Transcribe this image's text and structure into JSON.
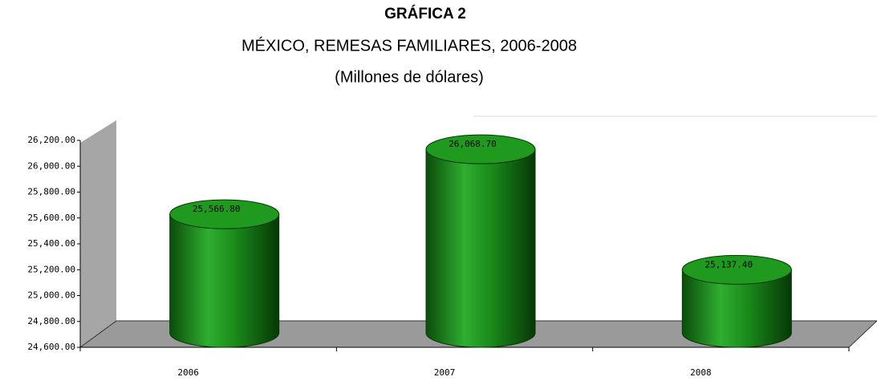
{
  "chart_data": {
    "type": "bar",
    "title": "GRÁFICA 2",
    "subtitle": "MÉXICO, REMESAS FAMILIARES, 2006-2008",
    "unit": "(Millones de dólares)",
    "categories": [
      "2006",
      "2007",
      "2008"
    ],
    "values": [
      25566.8,
      26068.7,
      25137.4
    ],
    "value_labels": [
      "25,566.80",
      "26,068.70",
      "25,137.40"
    ],
    "color": "#1a8a1a",
    "ylim": [
      24600,
      26200
    ],
    "yticks": [
      {
        "value": 24600,
        "label": "24,600.00"
      },
      {
        "value": 24800,
        "label": "24,800.00"
      },
      {
        "value": 25000,
        "label": "25,000.00"
      },
      {
        "value": 25200,
        "label": "25,200.00"
      },
      {
        "value": 25400,
        "label": "25,400.00"
      },
      {
        "value": 25600,
        "label": "25,600.00"
      },
      {
        "value": 25800,
        "label": "25,800.00"
      },
      {
        "value": 26000,
        "label": "26,000.00"
      },
      {
        "value": 26200,
        "label": "26,200.00"
      }
    ]
  }
}
